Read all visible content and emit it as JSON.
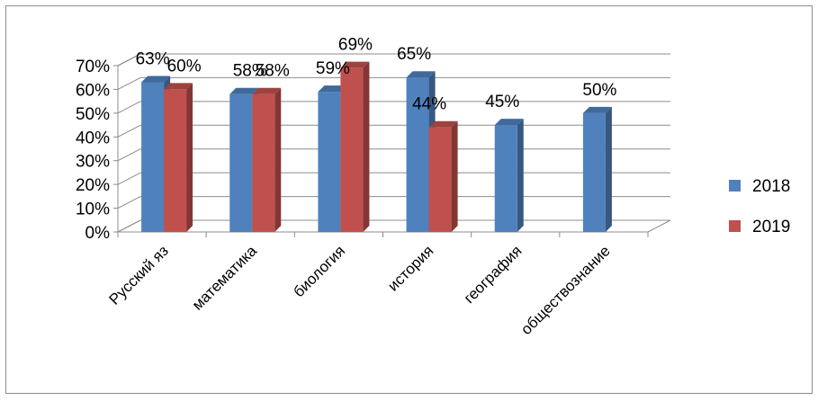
{
  "chart_data": {
    "type": "bar",
    "categories": [
      "Русский яз",
      "математика",
      "биология",
      "история",
      "география",
      "обществознание"
    ],
    "series": [
      {
        "name": "2018",
        "values": [
          63,
          58,
          59,
          65,
          45,
          50
        ],
        "color": "#4f81bd"
      },
      {
        "name": "2019",
        "values": [
          60,
          58,
          69,
          44,
          null,
          null
        ],
        "color": "#c0504d"
      }
    ],
    "data_labels": [
      [
        "63%",
        "58%",
        "59%",
        "65%",
        "45%",
        "50%"
      ],
      [
        "60%",
        "58%",
        "69%",
        "44%",
        "",
        ""
      ]
    ],
    "yticks": [
      "0%",
      "10%",
      "20%",
      "30%",
      "40%",
      "50%",
      "60%",
      "70%"
    ],
    "ylim": [
      0,
      70
    ],
    "legend": "right",
    "grid": true,
    "style": "3d-clustered-column"
  }
}
